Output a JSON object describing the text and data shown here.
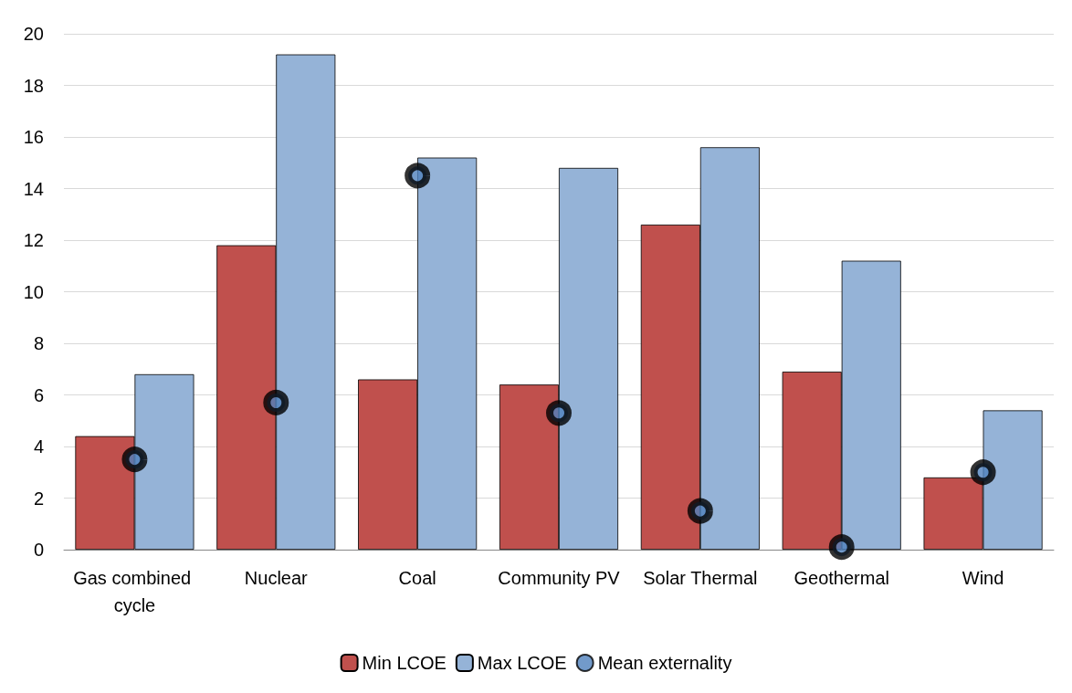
{
  "chart_data": {
    "type": "bar",
    "categories": [
      "Gas combined cycle",
      "Nuclear",
      "Coal",
      "Community PV",
      "Solar Thermal",
      "Geothermal",
      "Wind"
    ],
    "series": [
      {
        "name": "Min LCOE",
        "color": "#c0504d",
        "values": [
          4.4,
          11.8,
          6.6,
          6.4,
          12.6,
          6.9,
          2.8
        ]
      },
      {
        "name": "Max LCOE",
        "color": "#95b3d7",
        "values": [
          6.8,
          19.2,
          15.2,
          14.8,
          15.6,
          11.2,
          5.4
        ]
      },
      {
        "name": "Mean externality",
        "type": "scatter",
        "marker": "circle",
        "color": "#000000",
        "x": [
          "Gas combined cycle",
          "Nuclear",
          "Coal",
          "Community PV",
          "Solar Thermal",
          "Geothermal",
          "Wind"
        ],
        "values": [
          3.5,
          5.7,
          14.5,
          5.3,
          1.5,
          0.1,
          3.0
        ]
      }
    ],
    "ylim": [
      0,
      20
    ],
    "yticks": [
      0,
      2,
      4,
      6,
      8,
      10,
      12,
      14,
      16,
      18,
      20
    ],
    "grid": "y",
    "legend": "bottom"
  }
}
